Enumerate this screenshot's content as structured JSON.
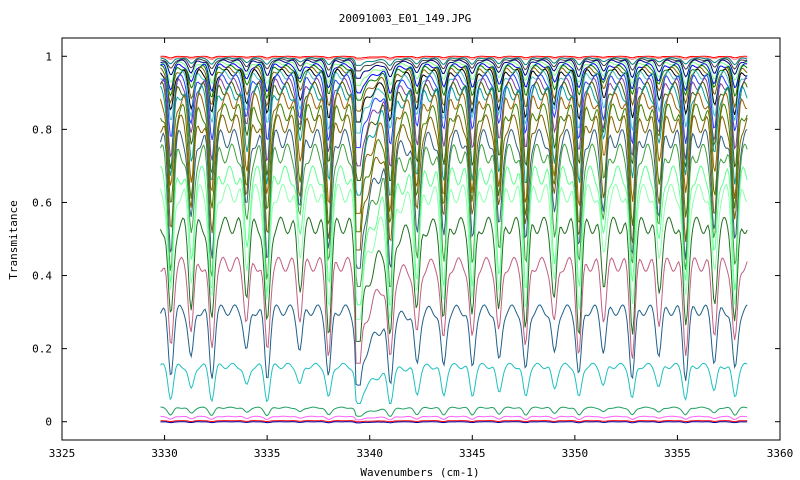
{
  "chart_data": {
    "type": "line",
    "title": "20091003_E01_149.JPG",
    "xlabel": "Wavenumbers (cm-1)",
    "ylabel": "Transmitance",
    "xlim": [
      3325,
      3360
    ],
    "ylim": [
      -0.05,
      1.05
    ],
    "x_ticks": [
      "3325",
      "3330",
      "3335",
      "3340",
      "3345",
      "3350",
      "3355",
      "3360"
    ],
    "y_ticks": [
      "0",
      "0.2",
      "0.4",
      "0.6",
      "0.8",
      "1"
    ],
    "grid": false,
    "legend": "none",
    "x_data_range": [
      3329.8,
      3358.4
    ],
    "strong_line_center": 3339.4,
    "absorption_line_positions": [
      3330.3,
      3331.3,
      3332.3,
      3334.0,
      3335.0,
      3336.6,
      3338.0,
      3339.4,
      3341.0,
      3342.3,
      3343.6,
      3345.0,
      3346.3,
      3347.6,
      3349.0,
      3350.2,
      3351.4,
      3352.8,
      3354.1,
      3355.4,
      3356.8,
      3357.8
    ],
    "series": [
      {
        "baseline": 1.0,
        "min": 0.995,
        "color": "#ff0000"
      },
      {
        "baseline": 0.998,
        "min": 0.99,
        "color": "#ff8080"
      },
      {
        "baseline": 0.996,
        "min": 0.975,
        "color": "#008080"
      },
      {
        "baseline": 0.993,
        "min": 0.96,
        "color": "#404040"
      },
      {
        "baseline": 0.99,
        "min": 0.94,
        "color": "#000080"
      },
      {
        "baseline": 0.985,
        "min": 0.92,
        "color": "#80ff80"
      },
      {
        "baseline": 0.98,
        "min": 0.9,
        "color": "#0000ff"
      },
      {
        "baseline": 0.975,
        "min": 0.88,
        "color": "#008000"
      },
      {
        "baseline": 0.97,
        "min": 0.85,
        "color": "#806000"
      },
      {
        "baseline": 0.965,
        "min": 0.82,
        "color": "#000000"
      },
      {
        "baseline": 0.96,
        "min": 0.79,
        "color": "#40c0c0"
      },
      {
        "baseline": 0.95,
        "min": 0.75,
        "color": "#2040ff"
      },
      {
        "baseline": 0.94,
        "min": 0.7,
        "color": "#8040a0"
      },
      {
        "baseline": 0.93,
        "min": 0.66,
        "color": "#406000"
      },
      {
        "baseline": 0.92,
        "min": 0.62,
        "color": "#00a0a0"
      },
      {
        "baseline": 0.9,
        "min": 0.57,
        "color": "#a06000"
      },
      {
        "baseline": 0.87,
        "min": 0.52,
        "color": "#408000"
      },
      {
        "baseline": 0.84,
        "min": 0.47,
        "color": "#806000"
      },
      {
        "baseline": 0.8,
        "min": 0.42,
        "color": "#306080"
      },
      {
        "baseline": 0.76,
        "min": 0.37,
        "color": "#40a040"
      },
      {
        "baseline": 0.7,
        "min": 0.32,
        "color": "#60ff90"
      },
      {
        "baseline": 0.65,
        "min": 0.28,
        "color": "#90ffb0"
      },
      {
        "baseline": 0.56,
        "min": 0.22,
        "color": "#207020"
      },
      {
        "baseline": 0.45,
        "min": 0.16,
        "color": "#c06080"
      },
      {
        "baseline": 0.32,
        "min": 0.1,
        "color": "#20608a"
      },
      {
        "baseline": 0.16,
        "min": 0.05,
        "color": "#20c0c0"
      },
      {
        "baseline": 0.04,
        "min": 0.015,
        "color": "#20a060"
      },
      {
        "baseline": 0.015,
        "min": 0.005,
        "color": "#ff60ff"
      },
      {
        "baseline": 0.003,
        "min": 0.0,
        "color": "#ff0000"
      },
      {
        "baseline": 0.0,
        "min": -0.003,
        "color": "#0000a0"
      }
    ]
  }
}
